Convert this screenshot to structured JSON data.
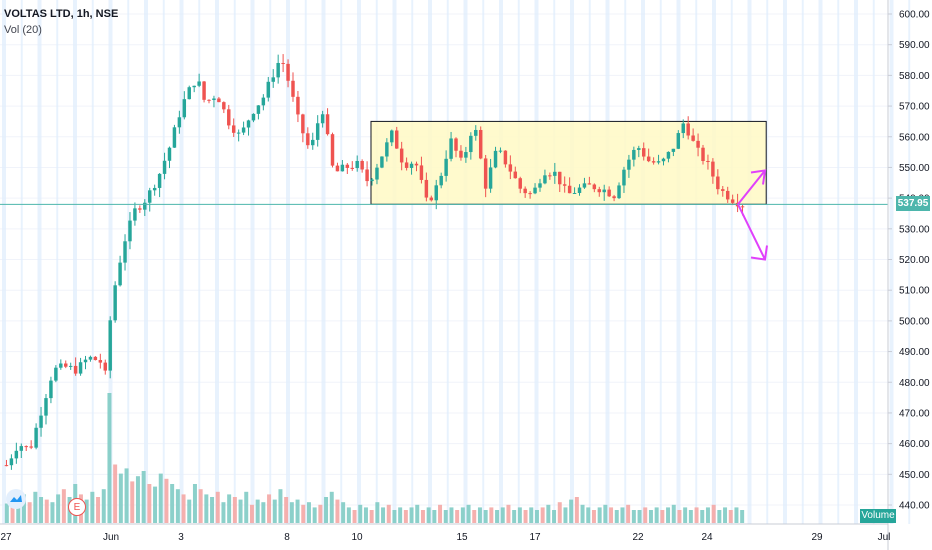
{
  "header": {
    "symbol": "VOLTAS LTD, 1h, NSE",
    "indicator": "Vol (20)"
  },
  "current_price_label": "537.95",
  "volume_label": "Volume",
  "event_badge": "E",
  "colors": {
    "up": "#26a69a",
    "down": "#ef5350",
    "vol_up": "#80cbc4",
    "vol_down": "#f4a7a5",
    "box_fill": "#fff9c4",
    "arrow": "#e040fb",
    "grid": "#e3effd",
    "price_line": "#4db6ac"
  },
  "chart_data": {
    "type": "candlestick",
    "title": "VOLTAS LTD, 1h, NSE",
    "ylim": [
      435,
      605
    ],
    "y_ticks": [
      "440.00",
      "450.00",
      "460.00",
      "470.00",
      "480.00",
      "490.00",
      "500.00",
      "510.00",
      "520.00",
      "530.00",
      "540.00",
      "550.00",
      "560.00",
      "570.00",
      "580.00",
      "590.00",
      "600.00"
    ],
    "x_ticks": [
      {
        "label": "27",
        "day": 0
      },
      {
        "label": "Jun",
        "day": 3
      },
      {
        "label": "3",
        "day": 5
      },
      {
        "label": "8",
        "day": 8
      },
      {
        "label": "10",
        "day": 10
      },
      {
        "label": "15",
        "day": 13
      },
      {
        "label": "17",
        "day": 15
      },
      {
        "label": "22",
        "day": 18
      },
      {
        "label": "24",
        "day": 20
      },
      {
        "label": "29",
        "day": 23
      },
      {
        "label": "Jul",
        "day": 25
      }
    ],
    "current_price": 537.95,
    "ohlc_path": [
      [
        0,
        453
      ],
      [
        2,
        460
      ],
      [
        4,
        458
      ],
      [
        6,
        471
      ],
      [
        8,
        484
      ],
      [
        10,
        485
      ],
      [
        12,
        484
      ],
      [
        14,
        488
      ],
      [
        16,
        487
      ],
      [
        17,
        482
      ],
      [
        18,
        506
      ],
      [
        20,
        525
      ],
      [
        22,
        536
      ],
      [
        24,
        540
      ],
      [
        26,
        547
      ],
      [
        28,
        557
      ],
      [
        30,
        570
      ],
      [
        32,
        578
      ],
      [
        33,
        577
      ],
      [
        34,
        571
      ],
      [
        36,
        574
      ],
      [
        38,
        565
      ],
      [
        40,
        560
      ],
      [
        42,
        568
      ],
      [
        44,
        573
      ],
      [
        46,
        582
      ],
      [
        47,
        586
      ],
      [
        48,
        580
      ],
      [
        50,
        565
      ],
      [
        52,
        555
      ],
      [
        54,
        570
      ],
      [
        56,
        548
      ],
      [
        58,
        550
      ],
      [
        60,
        551
      ],
      [
        62,
        545
      ],
      [
        64,
        553
      ],
      [
        66,
        561
      ],
      [
        68,
        551
      ],
      [
        70,
        552
      ],
      [
        72,
        538
      ],
      [
        74,
        545
      ],
      [
        76,
        559
      ],
      [
        78,
        551
      ],
      [
        80,
        565
      ],
      [
        82,
        544
      ],
      [
        84,
        556
      ],
      [
        86,
        550
      ],
      [
        88,
        543
      ],
      [
        90,
        541
      ],
      [
        92,
        549
      ],
      [
        94,
        548
      ],
      [
        96,
        541
      ],
      [
        98,
        543
      ],
      [
        100,
        544
      ],
      [
        102,
        543
      ],
      [
        104,
        541
      ],
      [
        106,
        551
      ],
      [
        108,
        557
      ],
      [
        110,
        552
      ],
      [
        112,
        551
      ],
      [
        114,
        556
      ],
      [
        116,
        565
      ],
      [
        118,
        556
      ],
      [
        120,
        551
      ],
      [
        122,
        543
      ],
      [
        124,
        540
      ],
      [
        126,
        537.95
      ]
    ],
    "ohlc_xmax": 126,
    "volume": {
      "max": 100,
      "values": [
        15,
        20,
        18,
        22,
        16,
        24,
        20,
        18,
        16,
        22,
        26,
        20,
        30,
        22,
        18,
        24,
        20,
        26,
        100,
        45,
        38,
        42,
        32,
        36,
        40,
        30,
        28,
        38,
        34,
        30,
        26,
        22,
        18,
        30,
        26,
        22,
        20,
        24,
        16,
        22,
        20,
        18,
        24,
        14,
        18,
        16,
        22,
        18,
        26,
        20,
        16,
        18,
        14,
        16,
        12,
        14,
        20,
        24,
        18,
        16,
        12,
        10,
        14,
        12,
        10,
        16,
        12,
        14,
        10,
        12,
        10,
        12,
        14,
        10,
        12,
        10,
        14,
        10,
        12,
        10,
        12,
        14,
        10,
        12,
        10,
        12,
        10,
        12,
        14,
        10,
        12,
        10,
        12,
        10,
        12,
        14,
        10,
        16,
        12,
        18,
        20,
        14,
        12,
        10,
        12,
        14,
        12,
        10,
        12,
        14,
        10,
        10,
        12,
        10,
        12,
        10,
        12,
        14,
        10,
        12,
        10,
        12,
        10,
        12,
        14,
        10,
        12,
        10,
        12,
        10
      ]
    },
    "range_box": {
      "price_top": 565,
      "price_bottom": 538,
      "from_fraction": 0.39,
      "to_fraction": 0.81
    },
    "annotations": [
      {
        "type": "arrow",
        "label": "",
        "from_price": 538,
        "to_price": 549,
        "direction": "up"
      },
      {
        "type": "arrow",
        "label": "",
        "from_price": 538,
        "to_price": 520,
        "direction": "down"
      }
    ]
  }
}
